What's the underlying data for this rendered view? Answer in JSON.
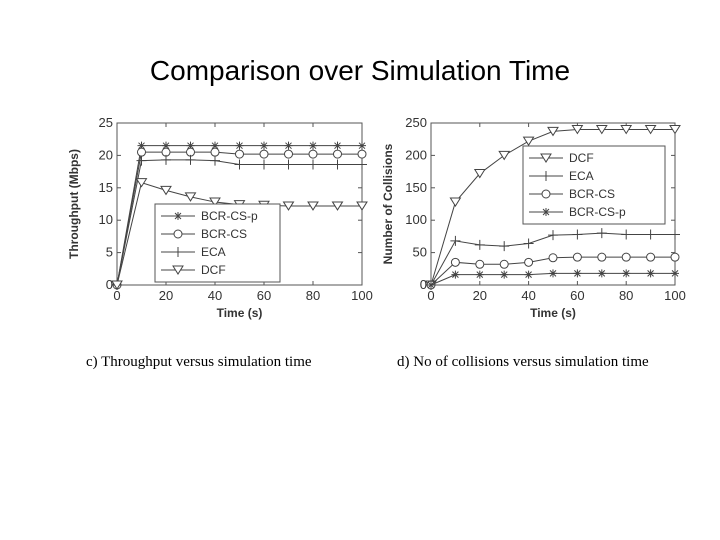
{
  "page_title": "Comparison over Simulation Time",
  "captions": {
    "left": "c) Throughput versus simulation time",
    "right": "d) No of collisions versus simulation time"
  },
  "chart_data": [
    {
      "type": "line",
      "xlabel": "Time (s)",
      "ylabel": "Throughput (Mbps)",
      "xlim": [
        0,
        100
      ],
      "ylim": [
        0,
        25
      ],
      "xticks": [
        0,
        20,
        40,
        60,
        80,
        100
      ],
      "yticks": [
        0,
        5,
        10,
        15,
        20,
        25
      ],
      "grid": false,
      "legend_position": "lower-right",
      "x": [
        0,
        10,
        20,
        30,
        40,
        50,
        60,
        70,
        80,
        90,
        100
      ],
      "series": [
        {
          "name": "BCR-CS-p",
          "marker": "asterisk",
          "values": [
            0,
            21.5,
            21.5,
            21.5,
            21.5,
            21.5,
            21.5,
            21.5,
            21.5,
            21.5,
            21.5
          ]
        },
        {
          "name": "BCR-CS",
          "marker": "circle",
          "values": [
            0,
            20.5,
            20.5,
            20.5,
            20.5,
            20.2,
            20.2,
            20.2,
            20.2,
            20.2,
            20.2
          ]
        },
        {
          "name": "ECA",
          "marker": "plus",
          "values": [
            0,
            19.2,
            19.3,
            19.3,
            19.2,
            18.6,
            18.6,
            18.6,
            18.6,
            18.6,
            18.6
          ]
        },
        {
          "name": "DCF",
          "marker": "triangle-down",
          "values": [
            0,
            15.8,
            14.6,
            13.6,
            12.8,
            12.4,
            12.3,
            12.2,
            12.2,
            12.2,
            12.2
          ]
        }
      ]
    },
    {
      "type": "line",
      "xlabel": "Time (s)",
      "ylabel": "Number of Collisions",
      "xlim": [
        0,
        100
      ],
      "ylim": [
        0,
        250
      ],
      "xticks": [
        0,
        20,
        40,
        60,
        80,
        100
      ],
      "yticks": [
        0,
        50,
        100,
        150,
        200,
        250
      ],
      "grid": false,
      "legend_position": "top-right",
      "x": [
        0,
        10,
        20,
        30,
        40,
        50,
        60,
        70,
        80,
        90,
        100
      ],
      "series": [
        {
          "name": "DCF",
          "marker": "triangle-down",
          "values": [
            0,
            128,
            172,
            200,
            222,
            237,
            240,
            240,
            240,
            240,
            240
          ]
        },
        {
          "name": "ECA",
          "marker": "plus",
          "values": [
            0,
            68,
            62,
            60,
            64,
            77,
            78,
            80,
            78,
            78,
            78
          ]
        },
        {
          "name": "BCR-CS",
          "marker": "circle",
          "values": [
            0,
            35,
            32,
            32,
            35,
            42,
            43,
            43,
            43,
            43,
            43
          ]
        },
        {
          "name": "BCR-CS-p",
          "marker": "asterisk",
          "values": [
            0,
            16,
            16,
            16,
            16,
            18,
            18,
            18,
            18,
            18,
            18
          ]
        }
      ]
    }
  ]
}
